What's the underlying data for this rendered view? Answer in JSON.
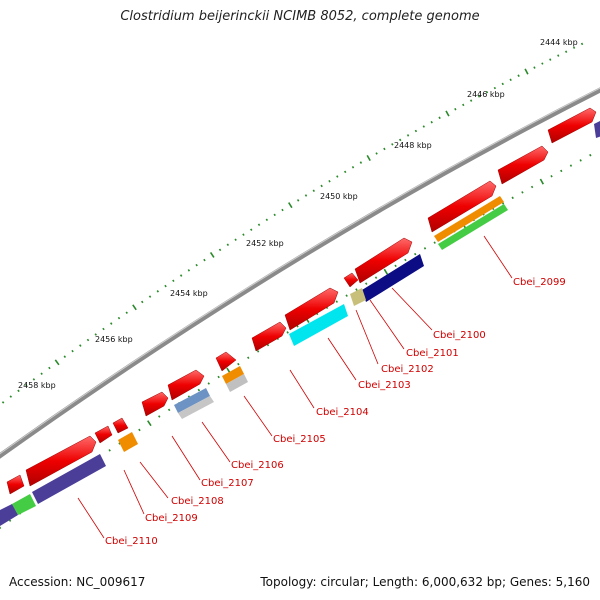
{
  "title": "Clostridium beijerinckii NCIMB 8052, complete genome",
  "accession": "Accession: NC_009617",
  "summary": "Topology: circular; Length: 6,000,632 bp; Genes: 5,160",
  "kbp_labels": [
    "2444 kbp",
    "2446 kbp",
    "2448 kbp",
    "2450 kbp",
    "2452 kbp",
    "2454 kbp",
    "2456 kbp",
    "2458 kbp"
  ],
  "gene_labels": [
    "Cbei_2099",
    "Cbei_2100",
    "Cbei_2101",
    "Cbei_2102",
    "Cbei_2103",
    "Cbei_2104",
    "Cbei_2105",
    "Cbei_2106",
    "Cbei_2107",
    "Cbei_2108",
    "Cbei_2109",
    "Cbei_2110"
  ],
  "colors": {
    "backbone": "#8a8a8a",
    "gene": "#ee0000",
    "label": "#d00000",
    "tick": "#2a8a2a",
    "cyan": "#00e5ee",
    "navy": "#0c0c84",
    "khaki": "#c8c07a",
    "orange": "#f08c00",
    "green": "#44cc44",
    "purple": "#4a3e98",
    "steel": "#6d93c4",
    "silver": "#c0c0c0"
  }
}
